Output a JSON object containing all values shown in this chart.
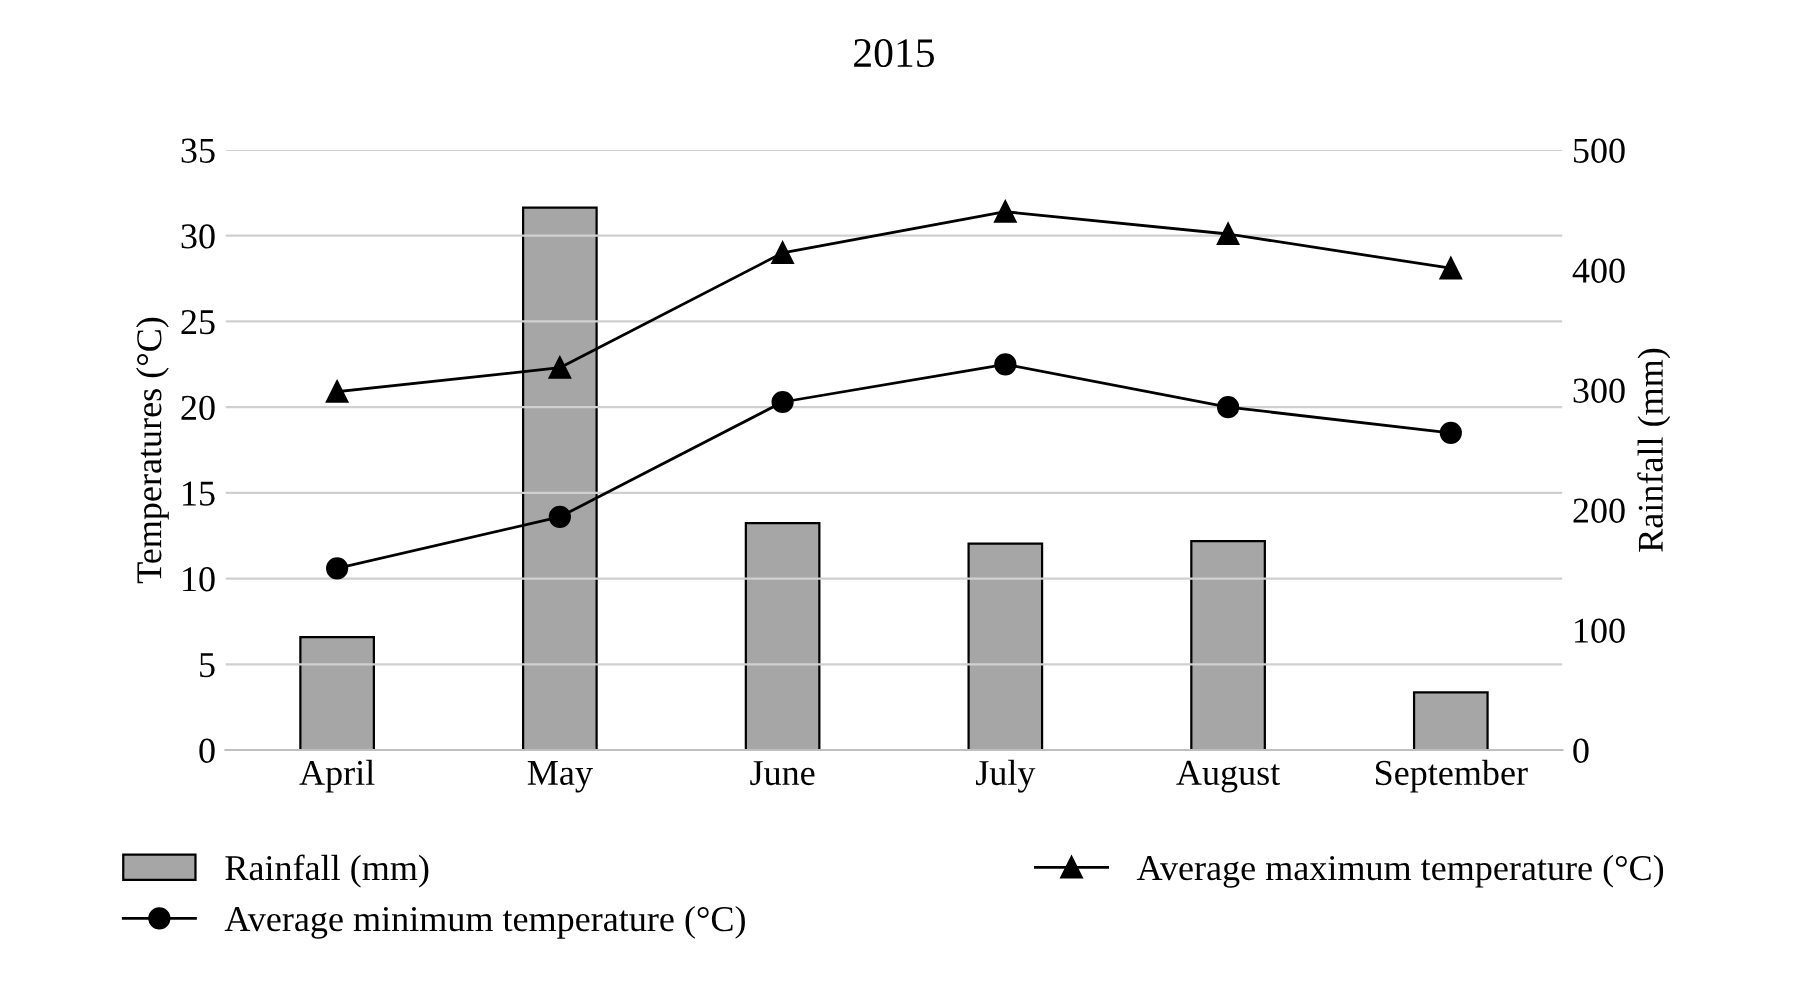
{
  "chart_data": {
    "type": "line",
    "title": "2015",
    "ylabel": "Temperatures (°C)",
    "y2label": "Rainfall (mm)",
    "categories": [
      "April",
      "May",
      "June",
      "July",
      "August",
      "September"
    ],
    "series": [
      {
        "name": "Rainfall (mm)",
        "type": "bar",
        "axis": "y2",
        "color": "#a6a6a6",
        "values": [
          94,
          452,
          189,
          172,
          174,
          48
        ]
      },
      {
        "name": "Average maximum temperature (°C)",
        "color": "#000000",
        "marker": "triangle",
        "values": [
          20.9,
          22.3,
          29.0,
          31.4,
          30.1,
          28.1
        ]
      },
      {
        "name": "Average minimum temperature (°C)",
        "color": "#000000",
        "marker": "circle",
        "values": [
          10.6,
          13.6,
          20.3,
          22.5,
          20.0,
          18.5
        ]
      }
    ],
    "ylim": [
      0,
      35
    ],
    "yticks": [
      0,
      5,
      10,
      15,
      20,
      25,
      30,
      35
    ],
    "y2lim": [
      0,
      500
    ],
    "y2ticks": [
      0,
      100,
      200,
      300,
      400,
      500
    ],
    "grid": "y",
    "legend": "bottom"
  }
}
